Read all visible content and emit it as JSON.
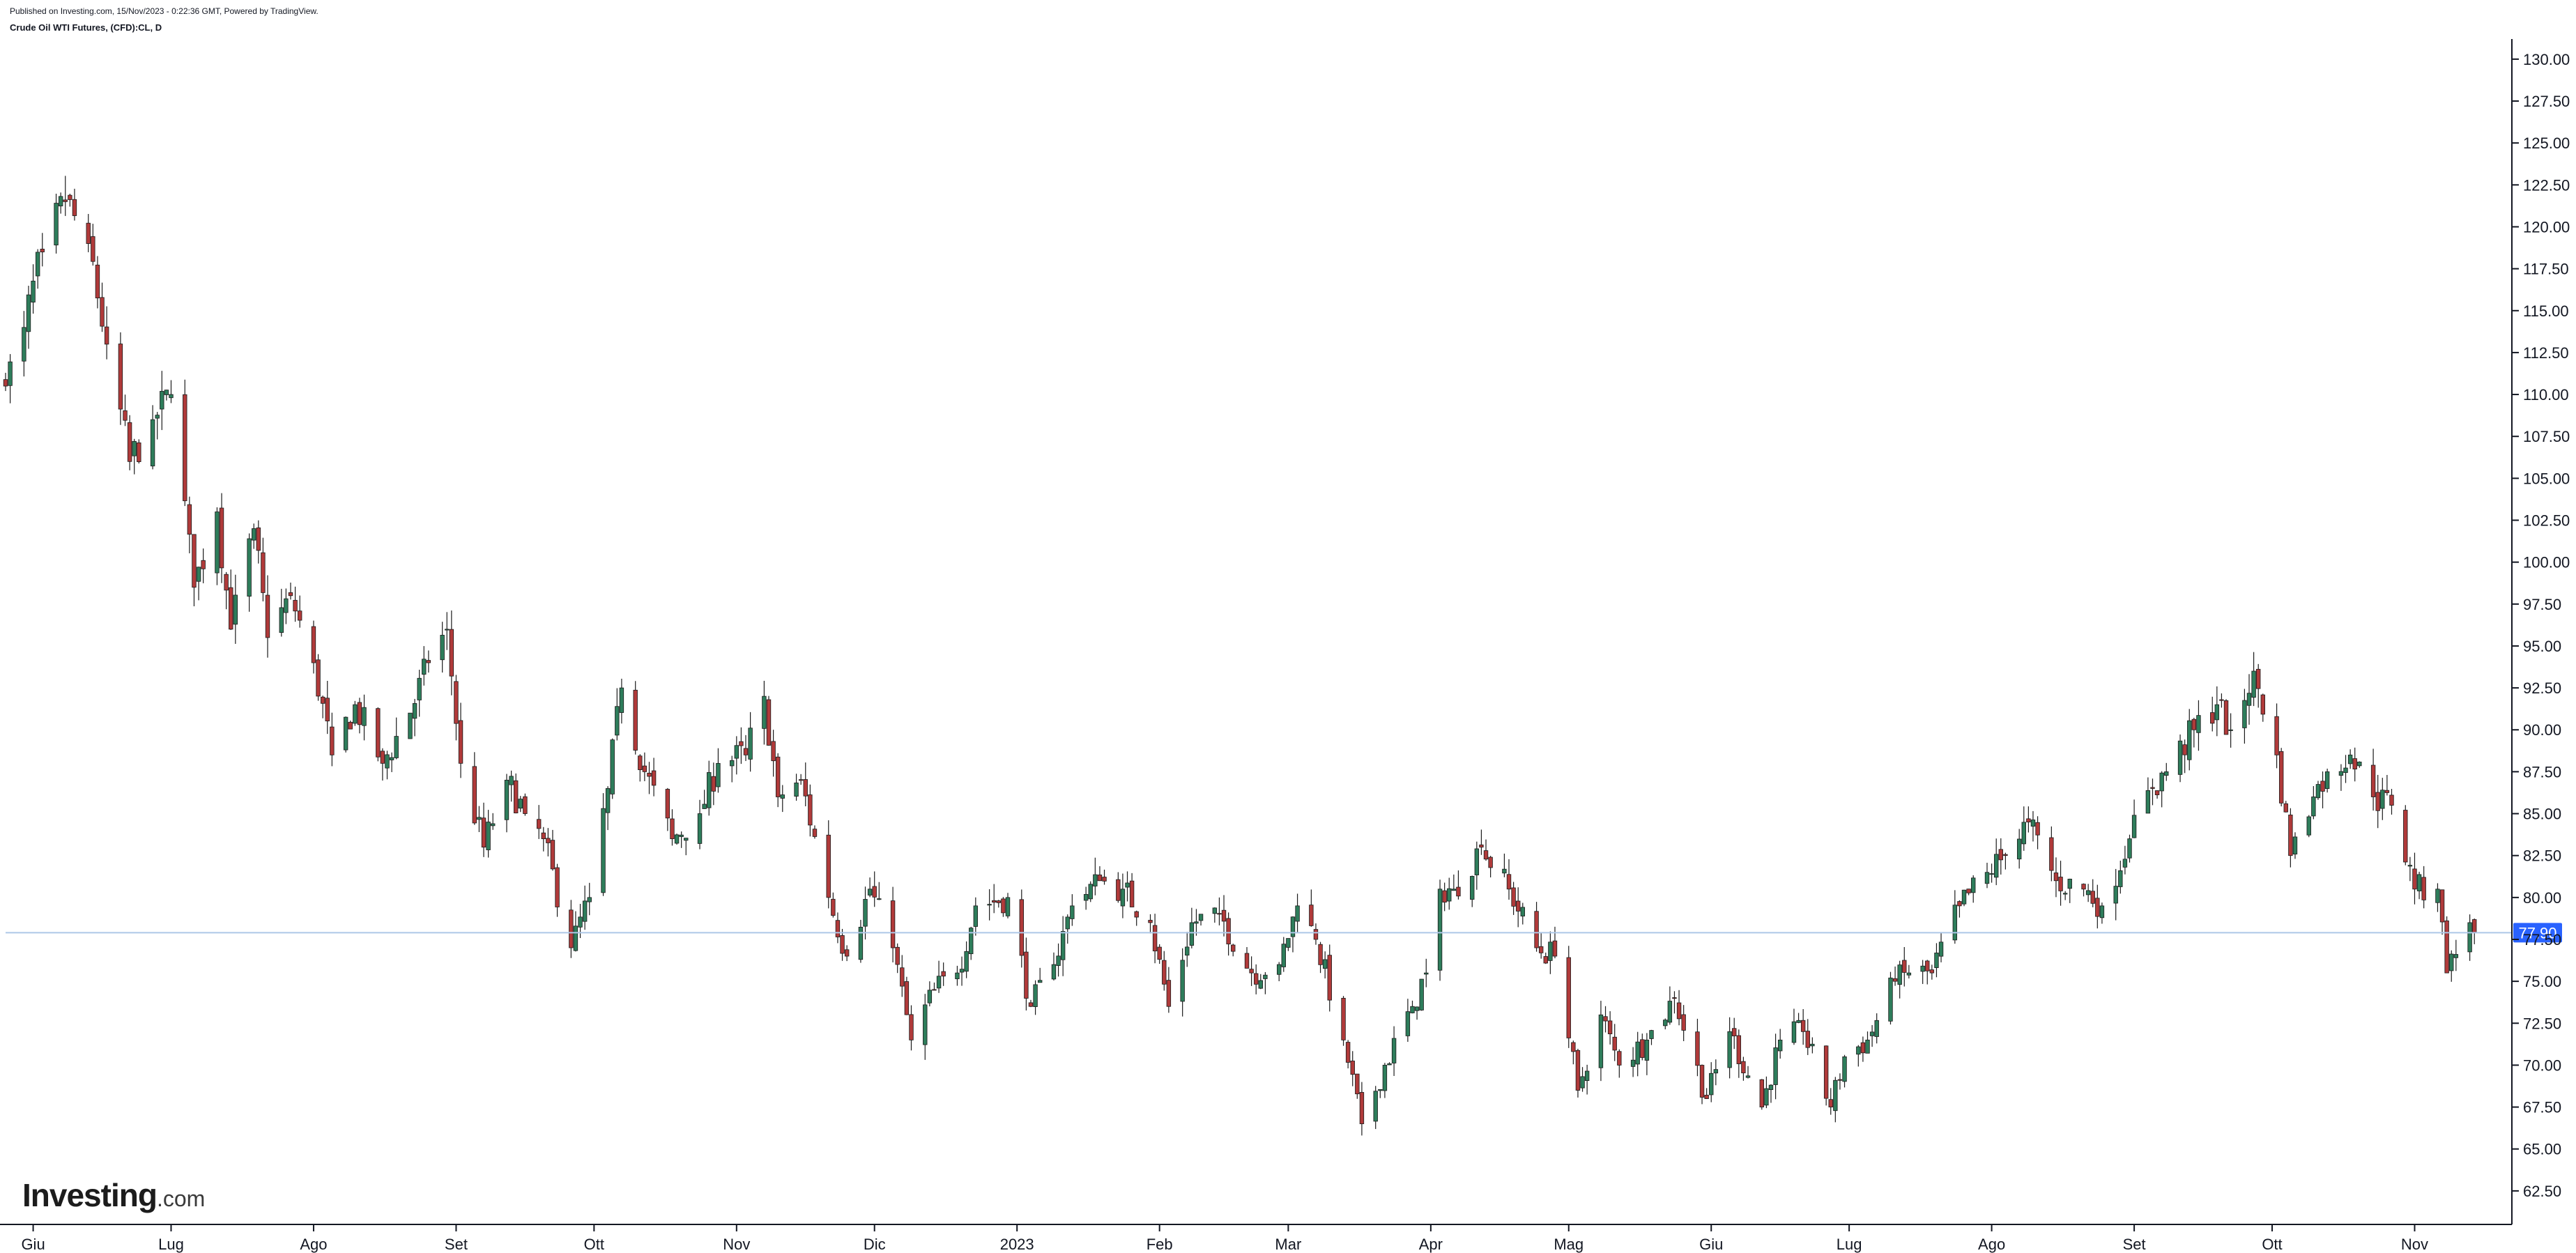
{
  "header": {
    "published": "Published on Investing.com, 15/Nov/2023 - 0:22:36 GMT, Powered by TradingView.",
    "symbol": "Crude Oil WTI Futures, (CFD):CL, D"
  },
  "logo": {
    "word": "Investing",
    "domain": ".com"
  },
  "colors": {
    "up": "#2e7d5b",
    "down": "#b03a3a",
    "wick": "#1b1b1b",
    "axis": "#131722",
    "price_line": "#aec7e8",
    "price_label_bg": "#2962ff"
  },
  "chart_data": {
    "type": "candlestick",
    "title": "Crude Oil WTI Futures, (CFD):CL, D",
    "x_range": [
      "2022-05-26",
      "2023-11-22"
    ],
    "ylim": [
      60.5,
      131.2
    ],
    "y_ticks": [
      130.0,
      127.5,
      125.0,
      122.5,
      120.0,
      117.5,
      115.0,
      112.5,
      110.0,
      107.5,
      105.0,
      102.5,
      100.0,
      97.5,
      95.0,
      92.5,
      90.0,
      87.5,
      85.0,
      82.5,
      80.0,
      77.5,
      75.0,
      72.5,
      70.0,
      67.5,
      65.0,
      62.5
    ],
    "x_ticks": [
      {
        "label": "Giu",
        "date": "2022-06-01"
      },
      {
        "label": "Lug",
        "date": "2022-07-01"
      },
      {
        "label": "Ago",
        "date": "2022-08-01"
      },
      {
        "label": "Set",
        "date": "2022-09-01"
      },
      {
        "label": "Ott",
        "date": "2022-10-01"
      },
      {
        "label": "Nov",
        "date": "2022-11-01"
      },
      {
        "label": "Dic",
        "date": "2022-12-01"
      },
      {
        "label": "2023",
        "date": "2023-01-01"
      },
      {
        "label": "Feb",
        "date": "2023-02-01"
      },
      {
        "label": "Mar",
        "date": "2023-03-01"
      },
      {
        "label": "Apr",
        "date": "2023-04-01"
      },
      {
        "label": "Mag",
        "date": "2023-05-01"
      },
      {
        "label": "Giu",
        "date": "2023-06-01"
      },
      {
        "label": "Lug",
        "date": "2023-07-01"
      },
      {
        "label": "Ago",
        "date": "2023-08-01"
      },
      {
        "label": "Set",
        "date": "2023-09-01"
      },
      {
        "label": "Ott",
        "date": "2023-10-01"
      },
      {
        "label": "Nov",
        "date": "2023-11-01"
      }
    ],
    "last_price": 77.9,
    "last_price_label": "77.90",
    "closes": [
      {
        "date": "2022-05-26",
        "close": 110.5
      },
      {
        "date": "2022-05-30",
        "close": 114.0
      },
      {
        "date": "2022-06-03",
        "close": 118.5
      },
      {
        "date": "2022-06-08",
        "close": 121.5
      },
      {
        "date": "2022-06-13",
        "close": 119.0
      },
      {
        "date": "2022-06-17",
        "close": 113.0
      },
      {
        "date": "2022-06-22",
        "close": 106.0
      },
      {
        "date": "2022-06-27",
        "close": 108.5
      },
      {
        "date": "2022-07-01",
        "close": 110.0
      },
      {
        "date": "2022-07-06",
        "close": 98.5
      },
      {
        "date": "2022-07-11",
        "close": 103.0
      },
      {
        "date": "2022-07-14",
        "close": 96.0
      },
      {
        "date": "2022-07-19",
        "close": 102.0
      },
      {
        "date": "2022-07-22",
        "close": 95.5
      },
      {
        "date": "2022-07-27",
        "close": 98.0
      },
      {
        "date": "2022-08-01",
        "close": 94.0
      },
      {
        "date": "2022-08-05",
        "close": 88.5
      },
      {
        "date": "2022-08-10",
        "close": 91.5
      },
      {
        "date": "2022-08-16",
        "close": 88.0
      },
      {
        "date": "2022-08-22",
        "close": 91.0
      },
      {
        "date": "2022-08-26",
        "close": 94.0
      },
      {
        "date": "2022-08-30",
        "close": 96.0
      },
      {
        "date": "2022-09-02",
        "close": 88.0
      },
      {
        "date": "2022-09-07",
        "close": 83.0
      },
      {
        "date": "2022-09-12",
        "close": 87.0
      },
      {
        "date": "2022-09-16",
        "close": 85.0
      },
      {
        "date": "2022-09-20",
        "close": 83.5
      },
      {
        "date": "2022-09-26",
        "close": 77.0
      },
      {
        "date": "2022-09-30",
        "close": 80.0
      },
      {
        "date": "2022-10-04",
        "close": 86.5
      },
      {
        "date": "2022-10-07",
        "close": 92.5
      },
      {
        "date": "2022-10-12",
        "close": 87.5
      },
      {
        "date": "2022-10-18",
        "close": 83.5
      },
      {
        "date": "2022-10-24",
        "close": 85.0
      },
      {
        "date": "2022-10-28",
        "close": 88.0
      },
      {
        "date": "2022-11-03",
        "close": 88.5
      },
      {
        "date": "2022-11-07",
        "close": 92.0
      },
      {
        "date": "2022-11-10",
        "close": 86.0
      },
      {
        "date": "2022-11-15",
        "close": 87.0
      },
      {
        "date": "2022-11-21",
        "close": 80.0
      },
      {
        "date": "2022-11-25",
        "close": 76.5
      },
      {
        "date": "2022-11-30",
        "close": 80.5
      },
      {
        "date": "2022-12-05",
        "close": 77.0
      },
      {
        "date": "2022-12-09",
        "close": 71.5
      },
      {
        "date": "2022-12-14",
        "close": 74.5
      },
      {
        "date": "2022-12-19",
        "close": 75.5
      },
      {
        "date": "2022-12-23",
        "close": 79.5
      },
      {
        "date": "2022-12-30",
        "close": 80.0
      },
      {
        "date": "2023-01-04",
        "close": 73.5
      },
      {
        "date": "2023-01-09",
        "close": 76.0
      },
      {
        "date": "2023-01-13",
        "close": 79.5
      },
      {
        "date": "2023-01-19",
        "close": 81.0
      },
      {
        "date": "2023-01-24",
        "close": 80.5
      },
      {
        "date": "2023-01-30",
        "close": 78.5
      },
      {
        "date": "2023-02-03",
        "close": 73.5
      },
      {
        "date": "2023-02-08",
        "close": 78.5
      },
      {
        "date": "2023-02-14",
        "close": 79.0
      },
      {
        "date": "2023-02-21",
        "close": 75.5
      },
      {
        "date": "2023-02-27",
        "close": 76.0
      },
      {
        "date": "2023-03-03",
        "close": 79.5
      },
      {
        "date": "2023-03-07",
        "close": 77.5
      },
      {
        "date": "2023-03-13",
        "close": 71.5
      },
      {
        "date": "2023-03-17",
        "close": 66.5
      },
      {
        "date": "2023-03-22",
        "close": 70.0
      },
      {
        "date": "2023-03-28",
        "close": 73.5
      },
      {
        "date": "2023-03-31",
        "close": 75.5
      },
      {
        "date": "2023-04-03",
        "close": 80.5
      },
      {
        "date": "2023-04-06",
        "close": 80.5
      },
      {
        "date": "2023-04-12",
        "close": 83.0
      },
      {
        "date": "2023-04-18",
        "close": 80.5
      },
      {
        "date": "2023-04-24",
        "close": 77.0
      },
      {
        "date": "2023-04-28",
        "close": 76.5
      },
      {
        "date": "2023-05-03",
        "close": 68.5
      },
      {
        "date": "2023-05-08",
        "close": 73.0
      },
      {
        "date": "2023-05-12",
        "close": 70.0
      },
      {
        "date": "2023-05-18",
        "close": 71.5
      },
      {
        "date": "2023-05-24",
        "close": 74.0
      },
      {
        "date": "2023-05-31",
        "close": 68.0
      },
      {
        "date": "2023-06-05",
        "close": 72.0
      },
      {
        "date": "2023-06-12",
        "close": 67.5
      },
      {
        "date": "2023-06-16",
        "close": 71.5
      },
      {
        "date": "2023-06-21",
        "close": 72.0
      },
      {
        "date": "2023-06-27",
        "close": 67.5
      },
      {
        "date": "2023-06-30",
        "close": 70.5
      },
      {
        "date": "2023-07-05",
        "close": 71.5
      },
      {
        "date": "2023-07-11",
        "close": 75.0
      },
      {
        "date": "2023-07-14",
        "close": 75.5
      },
      {
        "date": "2023-07-19",
        "close": 75.5
      },
      {
        "date": "2023-07-25",
        "close": 79.5
      },
      {
        "date": "2023-07-31",
        "close": 81.5
      },
      {
        "date": "2023-08-04",
        "close": 82.5
      },
      {
        "date": "2023-08-09",
        "close": 84.5
      },
      {
        "date": "2023-08-15",
        "close": 81.0
      },
      {
        "date": "2023-08-21",
        "close": 80.5
      },
      {
        "date": "2023-08-25",
        "close": 79.5
      },
      {
        "date": "2023-08-31",
        "close": 83.5
      },
      {
        "date": "2023-09-05",
        "close": 86.5
      },
      {
        "date": "2023-09-08",
        "close": 87.5
      },
      {
        "date": "2023-09-14",
        "close": 90.0
      },
      {
        "date": "2023-09-19",
        "close": 91.5
      },
      {
        "date": "2023-09-22",
        "close": 90.0
      },
      {
        "date": "2023-09-27",
        "close": 93.5
      },
      {
        "date": "2023-10-02",
        "close": 88.5
      },
      {
        "date": "2023-10-05",
        "close": 82.5
      },
      {
        "date": "2023-10-10",
        "close": 86.0
      },
      {
        "date": "2023-10-13",
        "close": 87.5
      },
      {
        "date": "2023-10-18",
        "close": 88.5
      },
      {
        "date": "2023-10-23",
        "close": 86.0
      },
      {
        "date": "2023-10-27",
        "close": 85.5
      },
      {
        "date": "2023-11-01",
        "close": 80.5
      },
      {
        "date": "2023-11-06",
        "close": 80.5
      },
      {
        "date": "2023-11-08",
        "close": 75.5
      },
      {
        "date": "2023-11-13",
        "close": 78.5
      },
      {
        "date": "2023-11-14",
        "close": 77.9
      }
    ]
  }
}
